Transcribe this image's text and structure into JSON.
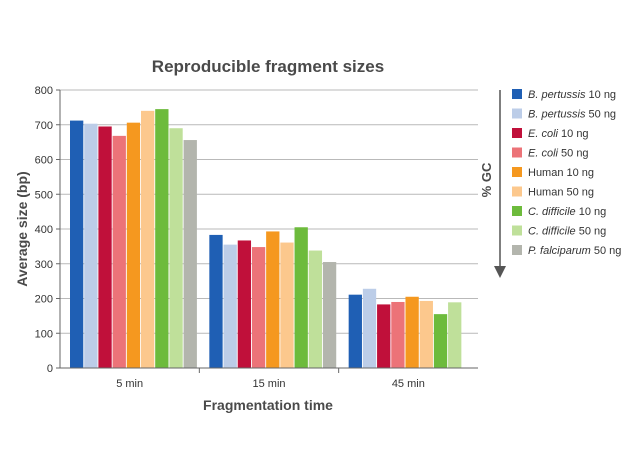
{
  "chart_data": {
    "type": "bar",
    "title": "Reproducible fragment sizes",
    "xlabel": "Fragmentation time",
    "ylabel": "Average size (bp)",
    "ylim": [
      0,
      800
    ],
    "yticks": [
      0,
      100,
      200,
      300,
      400,
      500,
      600,
      700,
      800
    ],
    "categories": [
      "5 min",
      "15 min",
      "45 min"
    ],
    "grid": true,
    "legend_position": "right",
    "series": [
      {
        "name_italic": "B. pertussis",
        "name_rest": " 10 ng",
        "color": "#1f5fb4",
        "values": [
          712,
          383,
          211
        ]
      },
      {
        "name_italic": "B. pertussis",
        "name_rest": " 50 ng",
        "color": "#bccde8",
        "values": [
          703,
          355,
          228
        ]
      },
      {
        "name_italic": "E. coli",
        "name_rest": " 10 ng",
        "color": "#c0103a",
        "values": [
          695,
          367,
          183
        ]
      },
      {
        "name_italic": "E. coli",
        "name_rest": " 50 ng",
        "color": "#ec7378",
        "values": [
          668,
          348,
          190
        ]
      },
      {
        "name_italic": "",
        "name_rest": "Human 10 ng",
        "color": "#f5981f",
        "values": [
          706,
          393,
          205
        ]
      },
      {
        "name_italic": "",
        "name_rest": "Human 50 ng",
        "color": "#fcc88d",
        "values": [
          740,
          361,
          193
        ]
      },
      {
        "name_italic": "C. difficile",
        "name_rest": " 10 ng",
        "color": "#6dbb3c",
        "values": [
          745,
          405,
          155
        ]
      },
      {
        "name_italic": "C. difficile",
        "name_rest": " 50 ng",
        "color": "#bfe09a",
        "values": [
          690,
          338,
          189
        ]
      },
      {
        "name_italic": "P. falciparum",
        "name_rest": " 50 ng",
        "color": "#b3b5ad",
        "values": [
          656,
          305,
          null
        ]
      }
    ],
    "gc_label": "% GC"
  }
}
